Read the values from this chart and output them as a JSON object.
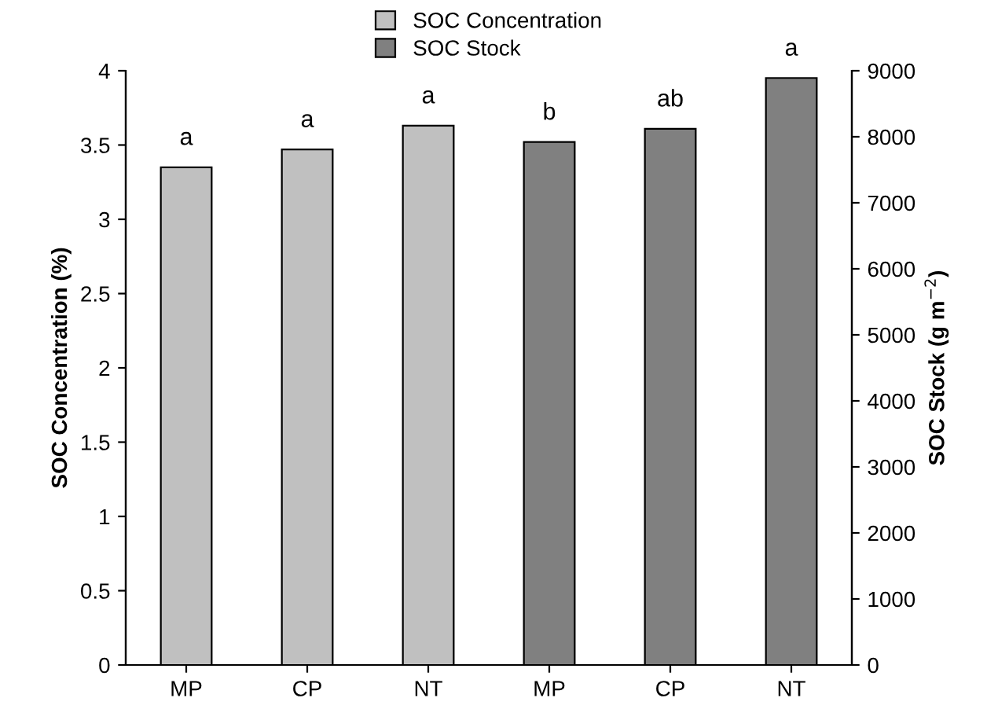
{
  "chart_data": {
    "type": "bar",
    "ylabel": "SOC Concentration (%)",
    "y2label": "SOC Stock (g m$^{−2}$)",
    "categories": [
      "MP",
      "CP",
      "NT",
      "MP",
      "CP",
      "NT"
    ],
    "series": [
      {
        "name": "SOC Concentration",
        "color": "#c0c0c0",
        "values": [
          3.35,
          3.47,
          3.63,
          null,
          null,
          null
        ],
        "value_labels": [
          "a",
          "a",
          "a",
          null,
          null,
          null
        ]
      },
      {
        "name": "SOC Stock",
        "color": "#808080",
        "axis": "y2",
        "values": [
          null,
          null,
          null,
          7920,
          8120,
          8890
        ],
        "value_labels": [
          null,
          null,
          null,
          "b",
          "ab",
          "a"
        ]
      }
    ],
    "ylim": [
      0,
      4
    ],
    "yticks": [
      0,
      0.5,
      1,
      1.5,
      2,
      2.5,
      3,
      3.5,
      4
    ],
    "y2lim": [
      0,
      9000
    ],
    "y2ticks": [
      0,
      1000,
      2000,
      3000,
      4000,
      5000,
      6000,
      7000,
      8000,
      9000
    ],
    "grid": false,
    "legend": "top"
  }
}
